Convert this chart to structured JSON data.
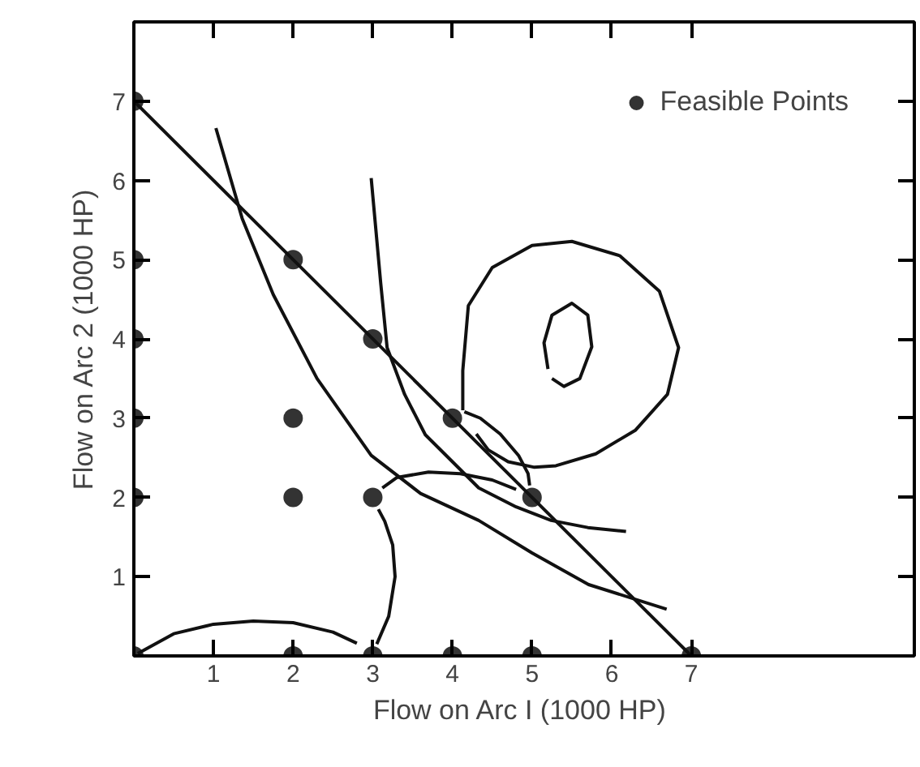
{
  "chart_data": {
    "type": "scatter",
    "xlabel": "Flow on Arc I  (1000 HP)",
    "ylabel": "Flow on Arc 2 (1000 HP)",
    "xlim": [
      0,
      9.8
    ],
    "ylim": [
      0,
      8
    ],
    "xticks": [
      1,
      2,
      3,
      4,
      5,
      6,
      7
    ],
    "yticks": [
      1,
      2,
      3,
      4,
      5,
      6,
      7
    ],
    "grid": false,
    "legend": "top right",
    "series": [
      {
        "name": "Feasible Points",
        "color": "#333333",
        "marker": "circle",
        "x": [
          0,
          0,
          0,
          0,
          0,
          0,
          2,
          2,
          2,
          3,
          3,
          2,
          3,
          4,
          5,
          7,
          4,
          5
        ],
        "values": [
          7,
          5,
          4,
          3,
          2,
          0,
          5,
          3,
          2,
          4,
          2,
          0,
          0,
          0,
          0,
          0,
          3,
          2
        ]
      },
      {
        "type": "line",
        "color": "#111111",
        "x": [
          0,
          7
        ],
        "values": [
          7,
          0
        ]
      },
      {
        "type": "line",
        "color": "#111111",
        "x": [
          1.03,
          1.36,
          1.75,
          2.3,
          2.98,
          3.6,
          4.33,
          5.0,
          5.71,
          6.69
        ],
        "values": [
          6.66,
          5.52,
          4.56,
          3.5,
          2.53,
          2.05,
          1.71,
          1.3,
          0.9,
          0.59
        ]
      },
      {
        "type": "line",
        "color": "#111111",
        "x": [
          2.98,
          3.1,
          3.18,
          3.4,
          3.66,
          4.33,
          4.8,
          5.24,
          5.7,
          6.18
        ],
        "values": [
          6.03,
          4.7,
          3.89,
          3.3,
          2.79,
          2.12,
          1.88,
          1.71,
          1.62,
          1.57
        ]
      },
      {
        "type": "line",
        "color": "#111111",
        "x": [
          4.13,
          4.13,
          4.2,
          4.5,
          5.0,
          5.5,
          6.1,
          6.6,
          6.84,
          6.7,
          6.3,
          5.8,
          5.3,
          5.03,
          4.7,
          4.45,
          4.3
        ],
        "values": [
          3.1,
          3.6,
          4.42,
          4.9,
          5.18,
          5.23,
          5.05,
          4.6,
          3.89,
          3.3,
          2.85,
          2.55,
          2.4,
          2.38,
          2.45,
          2.6,
          2.8
        ]
      },
      {
        "type": "line",
        "color": "#111111",
        "x": [
          5.25,
          5.4,
          5.6,
          5.75,
          5.7,
          5.5,
          5.25,
          5.15,
          5.2
        ],
        "values": [
          3.5,
          3.4,
          3.5,
          3.9,
          4.3,
          4.45,
          4.3,
          3.95,
          3.62
        ]
      },
      {
        "type": "line",
        "color": "#111111",
        "x": [
          0.05,
          0.5,
          1,
          1.5,
          2,
          2.5,
          2.8
        ],
        "values": [
          0.03,
          0.28,
          0.4,
          0.44,
          0.42,
          0.3,
          0.16
        ]
      },
      {
        "type": "line",
        "color": "#111111",
        "x": [
          3.05,
          3.2,
          3.28,
          3.25,
          3.15,
          3.07
        ],
        "values": [
          0.15,
          0.5,
          1,
          1.4,
          1.7,
          1.85
        ]
      },
      {
        "type": "line",
        "color": "#111111",
        "x": [
          3.12,
          3.3,
          3.7,
          4.1,
          4.5,
          4.8
        ],
        "values": [
          2.12,
          2.25,
          2.32,
          2.3,
          2.22,
          2.1
        ]
      },
      {
        "type": "line",
        "color": "#111111",
        "x": [
          4.97,
          4.95,
          4.83,
          4.6,
          4.35,
          4.15
        ],
        "values": [
          2.15,
          2.3,
          2.53,
          2.8,
          3,
          3.08
        ]
      }
    ]
  }
}
